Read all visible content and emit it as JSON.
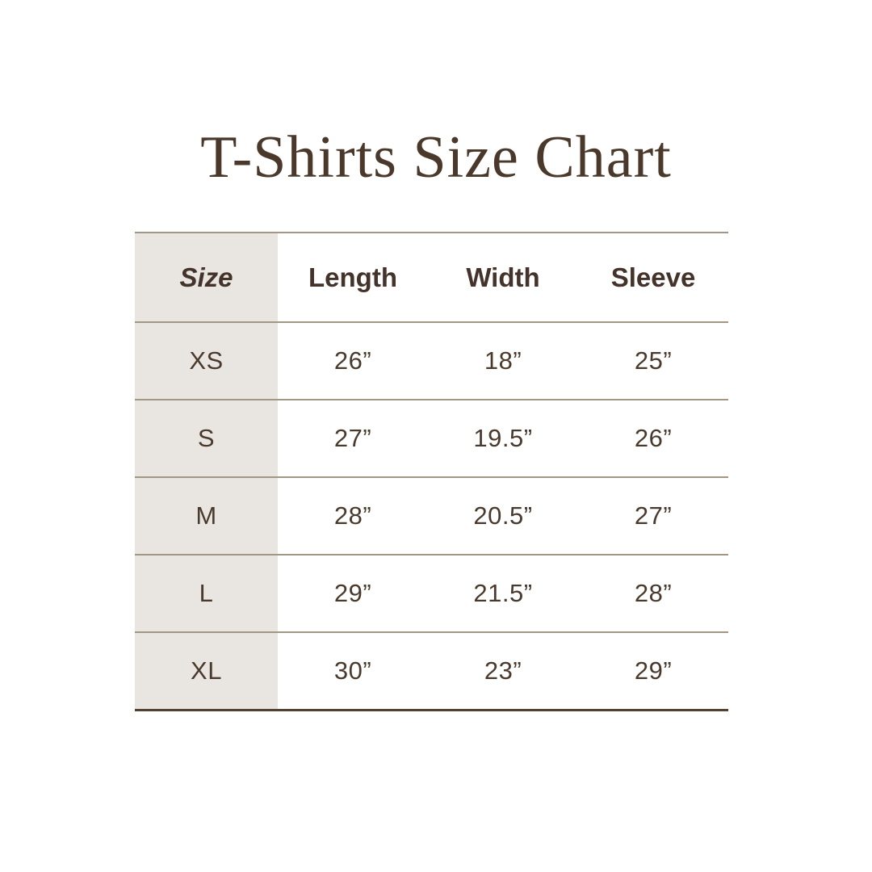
{
  "page": {
    "title": "T-Shirts Size Chart"
  },
  "table": {
    "columns": [
      "Size",
      "Length",
      "Width",
      "Sleeve"
    ],
    "rows": [
      {
        "cells": [
          "XS",
          "26”",
          "18”",
          "25”"
        ]
      },
      {
        "cells": [
          "S",
          "27”",
          "19.5”",
          "26”"
        ]
      },
      {
        "cells": [
          "M",
          "28”",
          "20.5”",
          "27”"
        ]
      },
      {
        "cells": [
          "L",
          "29”",
          "21.5”",
          "28”"
        ]
      },
      {
        "cells": [
          "XL",
          "30”",
          "23”",
          "29”"
        ]
      }
    ]
  },
  "colors": {
    "background": "#ffffff",
    "title_text": "#4a392b",
    "header_text": "#44332a",
    "table_text": "#4a3a2e",
    "size_column_bg": "#e9e6e1",
    "row_separator": "#a29786",
    "bottom_border": "#53402f"
  }
}
